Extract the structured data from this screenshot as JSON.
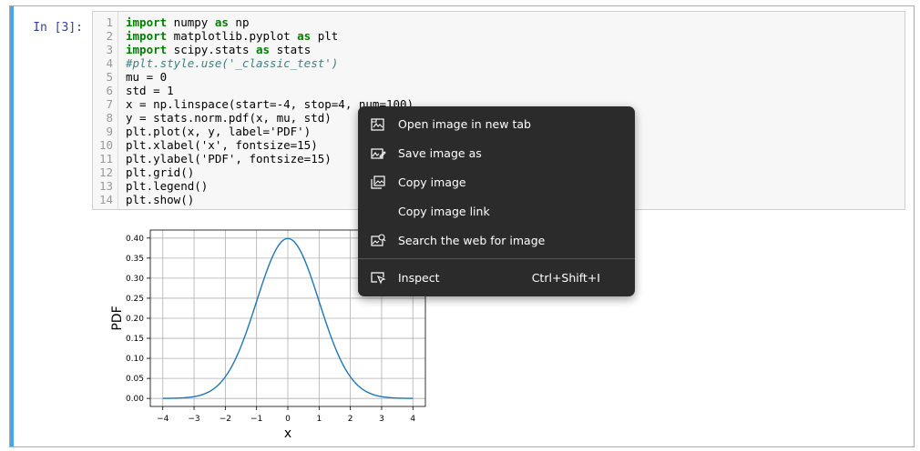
{
  "cell": {
    "prompt": "In [3]:",
    "code_lines": [
      {
        "n": "1",
        "html": "<span class=\"kw\">import</span> numpy <span class=\"kw\">as</span> np"
      },
      {
        "n": "2",
        "html": "<span class=\"kw\">import</span> matplotlib.pyplot <span class=\"kw\">as</span> plt"
      },
      {
        "n": "3",
        "html": "<span class=\"kw\">import</span> scipy.stats <span class=\"kw\">as</span> stats"
      },
      {
        "n": "4",
        "html": "<span class=\"cmt\">#plt.style.use('_classic_test')</span>"
      },
      {
        "n": "5",
        "html": "mu = 0"
      },
      {
        "n": "6",
        "html": "std = 1"
      },
      {
        "n": "7",
        "html": "x = np.linspace(start=-4, stop=4, num=100)"
      },
      {
        "n": "8",
        "html": "y = stats.norm.pdf(x, mu, std)"
      },
      {
        "n": "9",
        "html": "plt.plot(x, y, label='PDF')"
      },
      {
        "n": "10",
        "html": "plt.xlabel('x', fontsize=15)"
      },
      {
        "n": "11",
        "html": "plt.ylabel('PDF', fontsize=15)"
      },
      {
        "n": "12",
        "html": "plt.grid()"
      },
      {
        "n": "13",
        "html": "plt.legend()"
      },
      {
        "n": "14",
        "html": "plt.show()"
      }
    ]
  },
  "chart_data": {
    "type": "line",
    "xlabel": "x",
    "ylabel": "PDF",
    "xlim": [
      -4.4,
      4.4
    ],
    "ylim": [
      -0.02,
      0.42
    ],
    "xticks": [
      -4,
      -3,
      -2,
      -1,
      0,
      1,
      2,
      3,
      4
    ],
    "yticks": [
      0.0,
      0.05,
      0.1,
      0.15,
      0.2,
      0.25,
      0.3,
      0.35,
      0.4
    ],
    "xtick_labels": [
      "−4",
      "−3",
      "−2",
      "−1",
      "0",
      "1",
      "2",
      "3",
      "4"
    ],
    "ytick_labels": [
      "0.00",
      "0.05",
      "0.10",
      "0.15",
      "0.20",
      "0.25",
      "0.30",
      "0.35",
      "0.40"
    ],
    "grid": true,
    "series": [
      {
        "color": "#1f77b4",
        "x": [
          -4,
          -3.5,
          -3,
          -2.5,
          -2,
          -1.5,
          -1,
          -0.5,
          0,
          0.5,
          1,
          1.5,
          2,
          2.5,
          3,
          3.5,
          4
        ],
        "y": [
          0.0001,
          0.0009,
          0.0044,
          0.0175,
          0.054,
          0.1295,
          0.242,
          0.3521,
          0.3989,
          0.3521,
          0.242,
          0.1295,
          0.054,
          0.0175,
          0.0044,
          0.0009,
          0.0001
        ]
      }
    ]
  },
  "context_menu": {
    "items": [
      {
        "label": "Open image in new tab",
        "icon": "open-image-icon"
      },
      {
        "label": "Save image as",
        "icon": "save-image-icon"
      },
      {
        "label": "Copy image",
        "icon": "copy-image-icon"
      },
      {
        "label": "Copy image link",
        "icon": ""
      },
      {
        "label": "Search the web for image",
        "icon": "search-image-icon"
      },
      {
        "label": "Inspect",
        "icon": "inspect-icon",
        "shortcut": "Ctrl+Shift+I"
      }
    ]
  }
}
